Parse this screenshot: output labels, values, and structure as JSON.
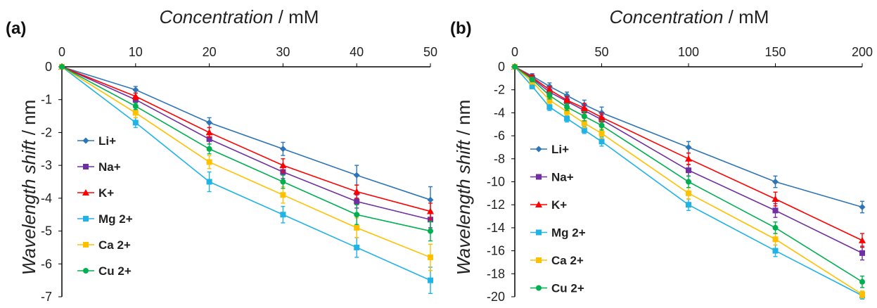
{
  "chart_data": [
    {
      "type": "line",
      "panel_label": "(a)",
      "xlabel_italic": "Concentration",
      "xlabel_unit": " / mM",
      "ylabel_italic": "Wavelength shift",
      "ylabel_unit": " / nm",
      "x_axis_position": "top",
      "x": [
        0,
        10,
        20,
        30,
        40,
        50
      ],
      "xlim": [
        0,
        50
      ],
      "xticks": [
        0,
        10,
        20,
        30,
        40,
        50
      ],
      "ylim": [
        -7,
        0
      ],
      "yticks": [
        0,
        -1,
        -2,
        -3,
        -4,
        -5,
        -6,
        -7
      ],
      "grid": false,
      "legend_position": "bottom-left",
      "series": [
        {
          "name": "Li+",
          "color": "#2E75B6",
          "marker": "diamond",
          "values": [
            0,
            -0.7,
            -1.7,
            -2.5,
            -3.3,
            -4.05
          ],
          "errors": [
            0,
            0.1,
            0.15,
            0.2,
            0.3,
            0.4
          ]
        },
        {
          "name": "Na+",
          "color": "#7030A0",
          "marker": "square",
          "values": [
            0,
            -1.0,
            -2.2,
            -3.2,
            -4.1,
            -4.65
          ],
          "errors": [
            0,
            0.1,
            0.15,
            0.2,
            0.2,
            0.25
          ]
        },
        {
          "name": "K+",
          "color": "#FF0000",
          "marker": "triangle",
          "values": [
            0,
            -0.9,
            -2.0,
            -3.0,
            -3.8,
            -4.4
          ],
          "errors": [
            0,
            0.1,
            0.15,
            0.2,
            0.2,
            0.25
          ]
        },
        {
          "name": "Mg 2+",
          "color": "#1FB3E6",
          "marker": "square",
          "values": [
            0,
            -1.7,
            -3.5,
            -4.5,
            -5.5,
            -6.5
          ],
          "errors": [
            0,
            0.15,
            0.3,
            0.25,
            0.3,
            0.4
          ]
        },
        {
          "name": "Ca 2+",
          "color": "#FFC000",
          "marker": "square",
          "values": [
            0,
            -1.4,
            -2.9,
            -3.9,
            -4.9,
            -5.8
          ],
          "errors": [
            0,
            0.15,
            0.2,
            0.25,
            0.3,
            0.4
          ]
        },
        {
          "name": "Cu 2+",
          "color": "#00B050",
          "marker": "circle",
          "values": [
            0,
            -1.2,
            -2.5,
            -3.5,
            -4.5,
            -5.0
          ],
          "errors": [
            0,
            0.1,
            0.15,
            0.2,
            0.3,
            0.3
          ]
        }
      ]
    },
    {
      "type": "line",
      "panel_label": "(b)",
      "xlabel_italic": "Concentration",
      "xlabel_unit": " / mM",
      "ylabel_italic": "Wavelength shift",
      "ylabel_unit": " / nm",
      "x_axis_position": "top",
      "x": [
        0,
        10,
        20,
        30,
        40,
        50,
        100,
        150,
        200
      ],
      "xlim": [
        0,
        200
      ],
      "xticks": [
        0,
        50,
        100,
        150,
        200
      ],
      "ylim": [
        -20,
        0
      ],
      "yticks": [
        0,
        -2,
        -4,
        -6,
        -8,
        -10,
        -12,
        -14,
        -16,
        -18,
        -20
      ],
      "grid": false,
      "legend_position": "bottom-left",
      "series": [
        {
          "name": "Li+",
          "color": "#2E75B6",
          "marker": "diamond",
          "values": [
            0,
            -0.8,
            -1.7,
            -2.5,
            -3.3,
            -4.0,
            -7.0,
            -10.0,
            -12.2
          ],
          "errors": [
            0,
            0.2,
            0.3,
            0.3,
            0.4,
            0.5,
            0.5,
            0.5,
            0.5
          ]
        },
        {
          "name": "Na+",
          "color": "#7030A0",
          "marker": "square",
          "values": [
            0,
            -1.0,
            -2.2,
            -3.0,
            -3.8,
            -4.6,
            -9.0,
            -12.5,
            -16.2
          ],
          "errors": [
            0,
            0.2,
            0.3,
            0.3,
            0.4,
            0.4,
            0.5,
            0.6,
            0.6
          ]
        },
        {
          "name": "K+",
          "color": "#FF0000",
          "marker": "triangle",
          "values": [
            0,
            -0.9,
            -2.0,
            -2.9,
            -3.6,
            -4.4,
            -8.0,
            -11.5,
            -15.1
          ],
          "errors": [
            0,
            0.2,
            0.3,
            0.3,
            0.4,
            0.4,
            0.5,
            0.6,
            0.6
          ]
        },
        {
          "name": "Mg 2+",
          "color": "#1FB3E6",
          "marker": "square",
          "values": [
            0,
            -1.7,
            -3.5,
            -4.5,
            -5.5,
            -6.5,
            -12.0,
            -16.0,
            -19.9
          ],
          "errors": [
            0,
            0.2,
            0.3,
            0.3,
            0.3,
            0.4,
            0.5,
            0.5,
            0.3
          ]
        },
        {
          "name": "Ca 2+",
          "color": "#FFC000",
          "marker": "square",
          "values": [
            0,
            -1.3,
            -2.9,
            -3.9,
            -4.9,
            -5.8,
            -11.0,
            -15.0,
            -19.8
          ],
          "errors": [
            0,
            0.2,
            0.3,
            0.3,
            0.4,
            0.4,
            0.5,
            0.5,
            0.3
          ]
        },
        {
          "name": "Cu 2+",
          "color": "#00B050",
          "marker": "circle",
          "values": [
            0,
            -1.1,
            -2.5,
            -3.5,
            -4.3,
            -5.1,
            -10.0,
            -14.0,
            -18.7
          ],
          "errors": [
            0,
            0.2,
            0.3,
            0.3,
            0.4,
            0.4,
            0.5,
            0.5,
            0.5
          ]
        }
      ]
    }
  ]
}
